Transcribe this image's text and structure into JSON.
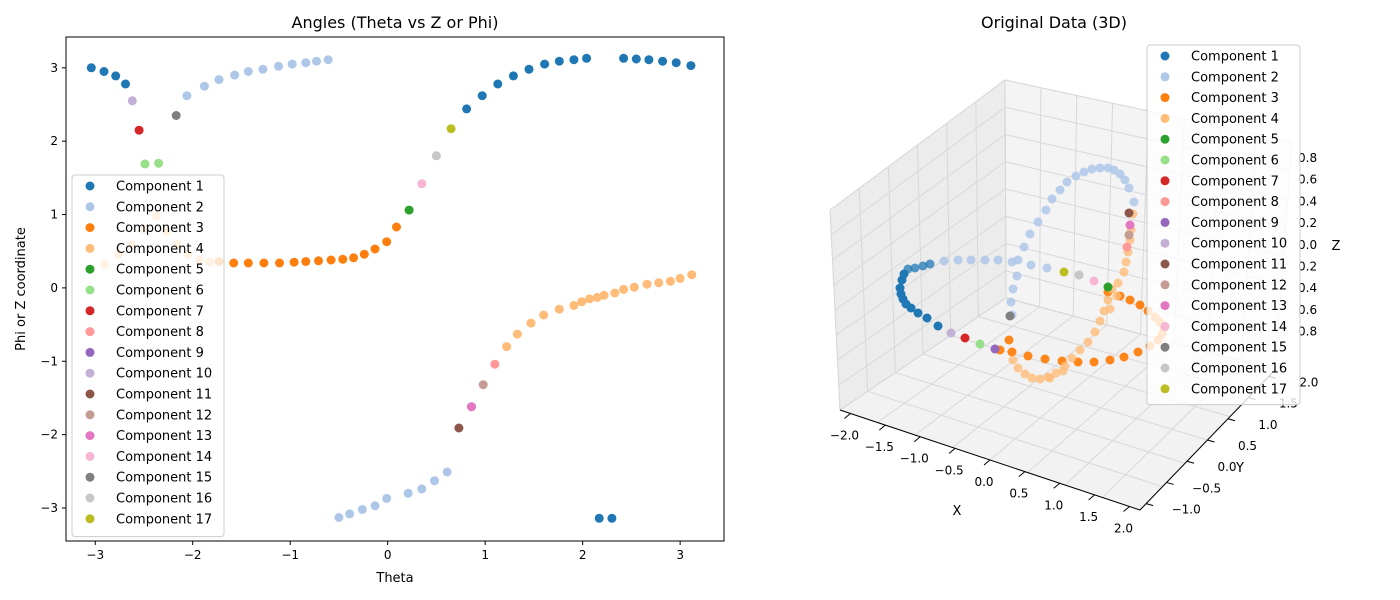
{
  "chart_data": [
    {
      "type": "scatter",
      "title": "Angles (Theta vs Z or Phi)",
      "xlabel": "Theta",
      "ylabel": "Phi or Z coordinate",
      "xlim": [
        -3.3,
        3.45
      ],
      "ylim": [
        -3.45,
        3.42
      ],
      "xticks": [
        -3,
        -2,
        -1,
        0,
        1,
        2,
        3
      ],
      "yticks": [
        -3,
        -2,
        -1,
        0,
        1,
        2,
        3
      ],
      "xtick_labels": [
        "−3",
        "−2",
        "−1",
        "0",
        "1",
        "2",
        "3"
      ],
      "ytick_labels": [
        "−3",
        "−2",
        "−1",
        "0",
        "1",
        "2",
        "3"
      ],
      "grid": false,
      "legend_position": "center-left",
      "series": [
        {
          "name": "Component 1",
          "color": "#1f77b4",
          "x": [
            -3.04,
            -2.91,
            -2.79,
            -2.69,
            0.81,
            0.97,
            1.13,
            1.29,
            1.45,
            1.61,
            1.76,
            1.91,
            2.04,
            2.17,
            2.3,
            2.42,
            2.55,
            2.68,
            2.82,
            2.96,
            3.11
          ],
          "y": [
            3.0,
            2.95,
            2.89,
            2.78,
            2.44,
            2.62,
            2.78,
            2.89,
            2.98,
            3.05,
            3.09,
            3.11,
            3.13,
            -3.14,
            -3.14,
            3.13,
            3.12,
            3.11,
            3.09,
            3.07,
            3.03
          ]
        },
        {
          "name": "Component 2",
          "color": "#aec7e8",
          "x": [
            -2.06,
            -1.88,
            -1.73,
            -1.57,
            -1.43,
            -1.28,
            -1.12,
            -0.98,
            -0.84,
            -0.73,
            -0.61,
            -0.5,
            -0.39,
            -0.26,
            -0.13,
            -0.01,
            0.21,
            0.35,
            0.48,
            0.61
          ],
          "y": [
            2.62,
            2.75,
            2.84,
            2.9,
            2.95,
            2.98,
            3.02,
            3.05,
            3.07,
            3.09,
            3.11,
            -3.13,
            -3.08,
            -3.02,
            -2.97,
            -2.87,
            -2.8,
            -2.74,
            -2.63,
            -2.51
          ]
        },
        {
          "name": "Component 3",
          "color": "#ff7f0e",
          "x": [
            -1.73,
            -1.58,
            -1.43,
            -1.27,
            -1.11,
            -0.96,
            -0.84,
            -0.71,
            -0.58,
            -0.46,
            -0.35,
            -0.24,
            -0.13,
            -0.01,
            0.09
          ],
          "y": [
            0.36,
            0.34,
            0.34,
            0.34,
            0.34,
            0.35,
            0.36,
            0.37,
            0.38,
            0.39,
            0.41,
            0.46,
            0.53,
            0.63,
            0.83
          ]
        },
        {
          "name": "Component 4",
          "color": "#ffbb78",
          "x": [
            -2.9,
            -2.76,
            -2.63,
            -2.5,
            -2.37,
            -2.27,
            -2.16,
            -2.05,
            -1.93,
            -1.83,
            1.22,
            1.33,
            1.47,
            1.6,
            1.76,
            1.91,
            1.99,
            2.07,
            2.15,
            2.22,
            2.33,
            2.42,
            2.53,
            2.66,
            2.78,
            2.9,
            3.0,
            3.12
          ],
          "y": [
            0.32,
            0.46,
            0.59,
            0.8,
            0.98,
            0.77,
            0.6,
            0.46,
            0.38,
            0.35,
            -0.8,
            -0.63,
            -0.48,
            -0.37,
            -0.29,
            -0.24,
            -0.19,
            -0.15,
            -0.13,
            -0.1,
            -0.07,
            -0.02,
            0.01,
            0.05,
            0.07,
            0.09,
            0.13,
            0.18
          ]
        },
        {
          "name": "Component 5",
          "color": "#2ca02c",
          "x": [
            0.22
          ],
          "y": [
            1.06
          ]
        },
        {
          "name": "Component 6",
          "color": "#98df8a",
          "x": [
            -2.49,
            -2.35
          ],
          "y": [
            1.69,
            1.7
          ]
        },
        {
          "name": "Component 7",
          "color": "#d62728",
          "x": [
            -2.55
          ],
          "y": [
            2.15
          ]
        },
        {
          "name": "Component 8",
          "color": "#ff9896",
          "x": [
            1.1
          ],
          "y": [
            -1.04
          ]
        },
        {
          "name": "Component 9",
          "color": "#9467bd",
          "x": [
            0.86
          ],
          "y": [
            -1.62
          ]
        },
        {
          "name": "Component 10",
          "color": "#c5b0d5",
          "x": [
            -2.62
          ],
          "y": [
            2.55
          ]
        },
        {
          "name": "Component 11",
          "color": "#8c564b",
          "x": [
            0.73
          ],
          "y": [
            -1.91
          ]
        },
        {
          "name": "Component 12",
          "color": "#c49c94",
          "x": [
            0.98
          ],
          "y": [
            -1.32
          ]
        },
        {
          "name": "Component 13",
          "color": "#e377c2",
          "x": [
            0.86
          ],
          "y": [
            -1.62
          ]
        },
        {
          "name": "Component 14",
          "color": "#f7b6d2",
          "x": [
            0.35
          ],
          "y": [
            1.42
          ]
        },
        {
          "name": "Component 15",
          "color": "#7f7f7f",
          "x": [
            -2.17
          ],
          "y": [
            2.35
          ]
        },
        {
          "name": "Component 16",
          "color": "#c7c7c7",
          "x": [
            0.5
          ],
          "y": [
            1.8
          ]
        },
        {
          "name": "Component 17",
          "color": "#bcbd22",
          "x": [
            0.65
          ],
          "y": [
            2.17
          ]
        }
      ]
    },
    {
      "type": "scatter",
      "title": "Original Data (3D)",
      "xlabel": "X",
      "ylabel": "Y",
      "zlabel": "Z",
      "xticks": [
        "−2.0",
        "−1.5",
        "−1.0",
        "−0.5",
        "0.0",
        "0.5",
        "1.0",
        "1.5",
        "2.0"
      ],
      "yticks": [
        "−1.0",
        "−0.5",
        "0.0",
        "0.5",
        "1.0",
        "1.5",
        "2.0"
      ],
      "zticks_visible": [
        "0.8",
        "0.6",
        "0.4",
        "0.2",
        "0.0",
        "0.2",
        "0.4",
        "0.6",
        "0.8"
      ],
      "legend_position": "upper-right",
      "legend": [
        "Component 1",
        "Component 2",
        "Component 3",
        "Component 4",
        "Component 5",
        "Component 6",
        "Component 7",
        "Component 8",
        "Component 9",
        "Component 10",
        "Component 11",
        "Component 12",
        "Component 13",
        "Component 14",
        "Component 15",
        "Component 16",
        "Component 17"
      ],
      "colors": [
        "#1f77b4",
        "#aec7e8",
        "#ff7f0e",
        "#ffbb78",
        "#2ca02c",
        "#98df8a",
        "#d62728",
        "#ff9896",
        "#9467bd",
        "#c5b0d5",
        "#8c564b",
        "#c49c94",
        "#e377c2",
        "#f7b6d2",
        "#7f7f7f",
        "#c7c7c7",
        "#bcbd22"
      ],
      "grid": true
    }
  ]
}
